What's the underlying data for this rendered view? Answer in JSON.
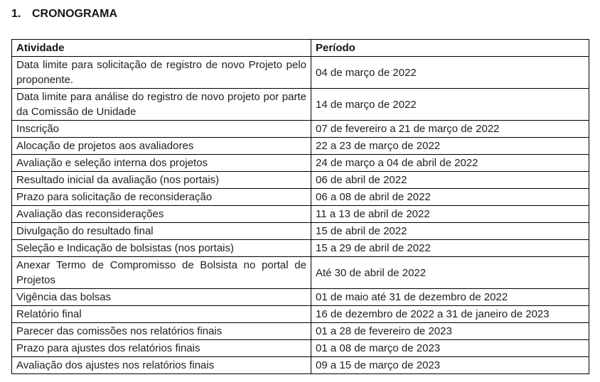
{
  "page": {
    "heading_number": "1.",
    "heading_text": "CRONOGRAMA"
  },
  "table": {
    "headers": [
      "Atividade",
      "Período"
    ],
    "rows": [
      {
        "atividade": "Data limite para solicitação de registro de novo Projeto pelo proponente.",
        "periodo": "04 de março de 2022"
      },
      {
        "atividade": "Data limite para análise do registro de novo projeto por parte da Comissão de Unidade",
        "periodo": "14 de março de 2022"
      },
      {
        "atividade": "Inscrição",
        "periodo": "07 de fevereiro a 21 de março de 2022"
      },
      {
        "atividade": "Alocação de projetos aos avaliadores",
        "periodo": "22 a 23 de março de 2022"
      },
      {
        "atividade": "Avaliação e seleção interna dos projetos",
        "periodo": "24 de março a 04 de abril de 2022"
      },
      {
        "atividade": "Resultado inicial da avaliação (nos portais)",
        "periodo": "06 de abril de 2022"
      },
      {
        "atividade": "Prazo para solicitação de reconsideração",
        "periodo": "06 a 08 de abril de 2022"
      },
      {
        "atividade": "Avaliação das reconsiderações",
        "periodo": "11 a 13 de abril de 2022"
      },
      {
        "atividade": "Divulgação do resultado final",
        "periodo": "15 de abril de 2022"
      },
      {
        "atividade": "Seleção e Indicação de bolsistas (nos portais)",
        "periodo": "15 a 29 de abril de 2022"
      },
      {
        "atividade": "Anexar Termo de Compromisso de Bolsista no portal de Projetos",
        "periodo": "Até 30 de abril de 2022"
      },
      {
        "atividade": "Vigência das bolsas",
        "periodo": "01 de maio até 31 de dezembro de 2022"
      },
      {
        "atividade": "Relatório final",
        "periodo": "16 de dezembro de 2022 a 31 de janeiro de 2023"
      },
      {
        "atividade": "Parecer das comissões nos relatórios finais",
        "periodo": "01 a 28 de fevereiro de 2023"
      },
      {
        "atividade": "Prazo para ajustes dos relatórios finais",
        "periodo": "01 a 08 de março de 2023"
      },
      {
        "atividade": "Avaliação dos ajustes nos relatórios finais",
        "periodo": "09 a 15 de março de 2023"
      }
    ]
  },
  "colors": {
    "text": "#1f1f1f",
    "border": "#000000",
    "background": "#ffffff"
  }
}
